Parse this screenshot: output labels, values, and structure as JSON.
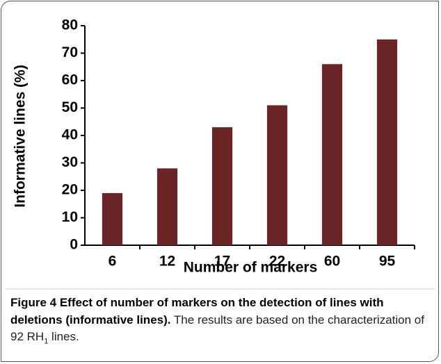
{
  "chart_data": {
    "type": "bar",
    "xlabel": "Number of markers",
    "ylabel": "Informative lines (%)",
    "categories": [
      "6",
      "12",
      "17",
      "22",
      "60",
      "95"
    ],
    "values": [
      19,
      28,
      43,
      51,
      66,
      75
    ],
    "color": "#6b2426",
    "ylim": [
      0,
      80
    ],
    "yticks": [
      0,
      10,
      20,
      30,
      40,
      50,
      60,
      70,
      80
    ],
    "grid": false
  },
  "caption": {
    "title": "Figure 4 Effect of number of markers on the detection of lines with deletions (informative lines).",
    "text": "The results are based on the characterization of 92 RH",
    "subscript": "1",
    "text_end": " lines."
  }
}
